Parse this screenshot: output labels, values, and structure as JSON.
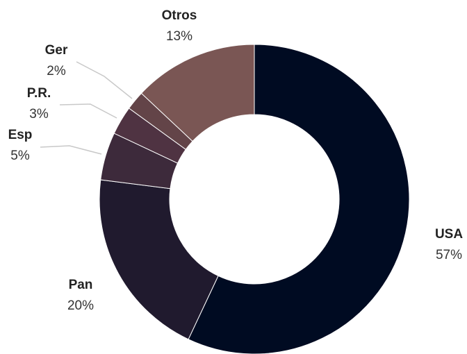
{
  "chart_data": {
    "type": "pie",
    "title": "",
    "donut": true,
    "categories": [
      "USA",
      "Pan",
      "Esp",
      "P.R.",
      "Ger",
      "Otros"
    ],
    "values": [
      57,
      20,
      5,
      3,
      2,
      13
    ],
    "value_labels": [
      "57%",
      "20%",
      "5%",
      "3%",
      "2%",
      "13%"
    ],
    "colors": [
      "#000b22",
      "#201a2e",
      "#3d2a3b",
      "#4f3342",
      "#634448",
      "#7a5654"
    ],
    "legend": "none"
  }
}
